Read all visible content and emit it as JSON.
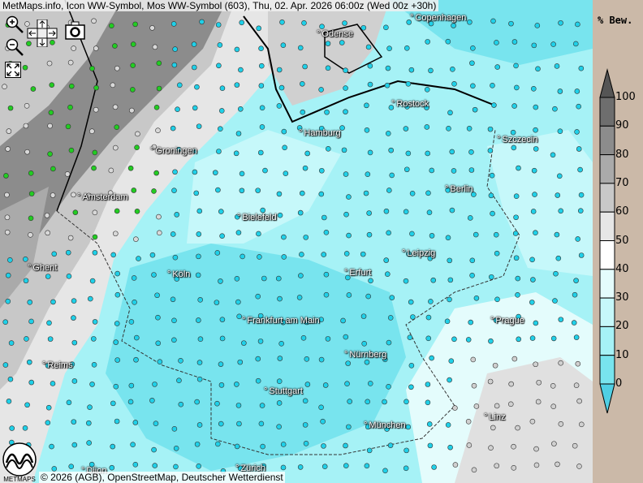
{
  "title": "MetMaps.info, Icon WW-Symbol, Mos WW-Symbol (603), Thu, 02. Apr. 2026 06:00z (Wed 00z +30h)",
  "toolbar": {
    "zoom_in": "zoom-in-icon",
    "zoom_out": "zoom-out-icon",
    "pan": "pan-arrows-icon",
    "snapshot": "camera-icon",
    "fullscreen": "fullscreen-icon"
  },
  "cities": [
    {
      "name": "Copenhagen"
    },
    {
      "name": "Odense"
    },
    {
      "name": "Rostock"
    },
    {
      "name": "Hamburg"
    },
    {
      "name": "Szczecin"
    },
    {
      "name": "Groningen"
    },
    {
      "name": "Amsterdam"
    },
    {
      "name": "Berlin"
    },
    {
      "name": "Bielefeld"
    },
    {
      "name": "Leipzig"
    },
    {
      "name": "Ghent"
    },
    {
      "name": "Köln"
    },
    {
      "name": "Erfurt"
    },
    {
      "name": "Frankfurt am Main"
    },
    {
      "name": "Prague"
    },
    {
      "name": "Nürnberg"
    },
    {
      "name": "Reims"
    },
    {
      "name": "Stuttgart"
    },
    {
      "name": "Linz"
    },
    {
      "name": "München"
    },
    {
      "name": "Zürich"
    },
    {
      "name": "Dijon"
    }
  ],
  "copyright": "© 2026 (AGB), OpenStreetMap, Deutscher Wetterdienst",
  "logo_text": "METMAPS",
  "legend": {
    "title": "% Bew.",
    "ticks": [
      "100",
      "90",
      "80",
      "70",
      "60",
      "50",
      "40",
      "30",
      "20",
      "10",
      "0"
    ],
    "colors": [
      "#6e6e6e",
      "#8c8c8c",
      "#aaaaaa",
      "#c8c8c8",
      "#e6e6e6",
      "#ffffff",
      "#e4fcfc",
      "#c6f8fa",
      "#a6f2f6",
      "#78e4ee"
    ],
    "over_color": "#555555",
    "under_color": "#50cfe4"
  }
}
